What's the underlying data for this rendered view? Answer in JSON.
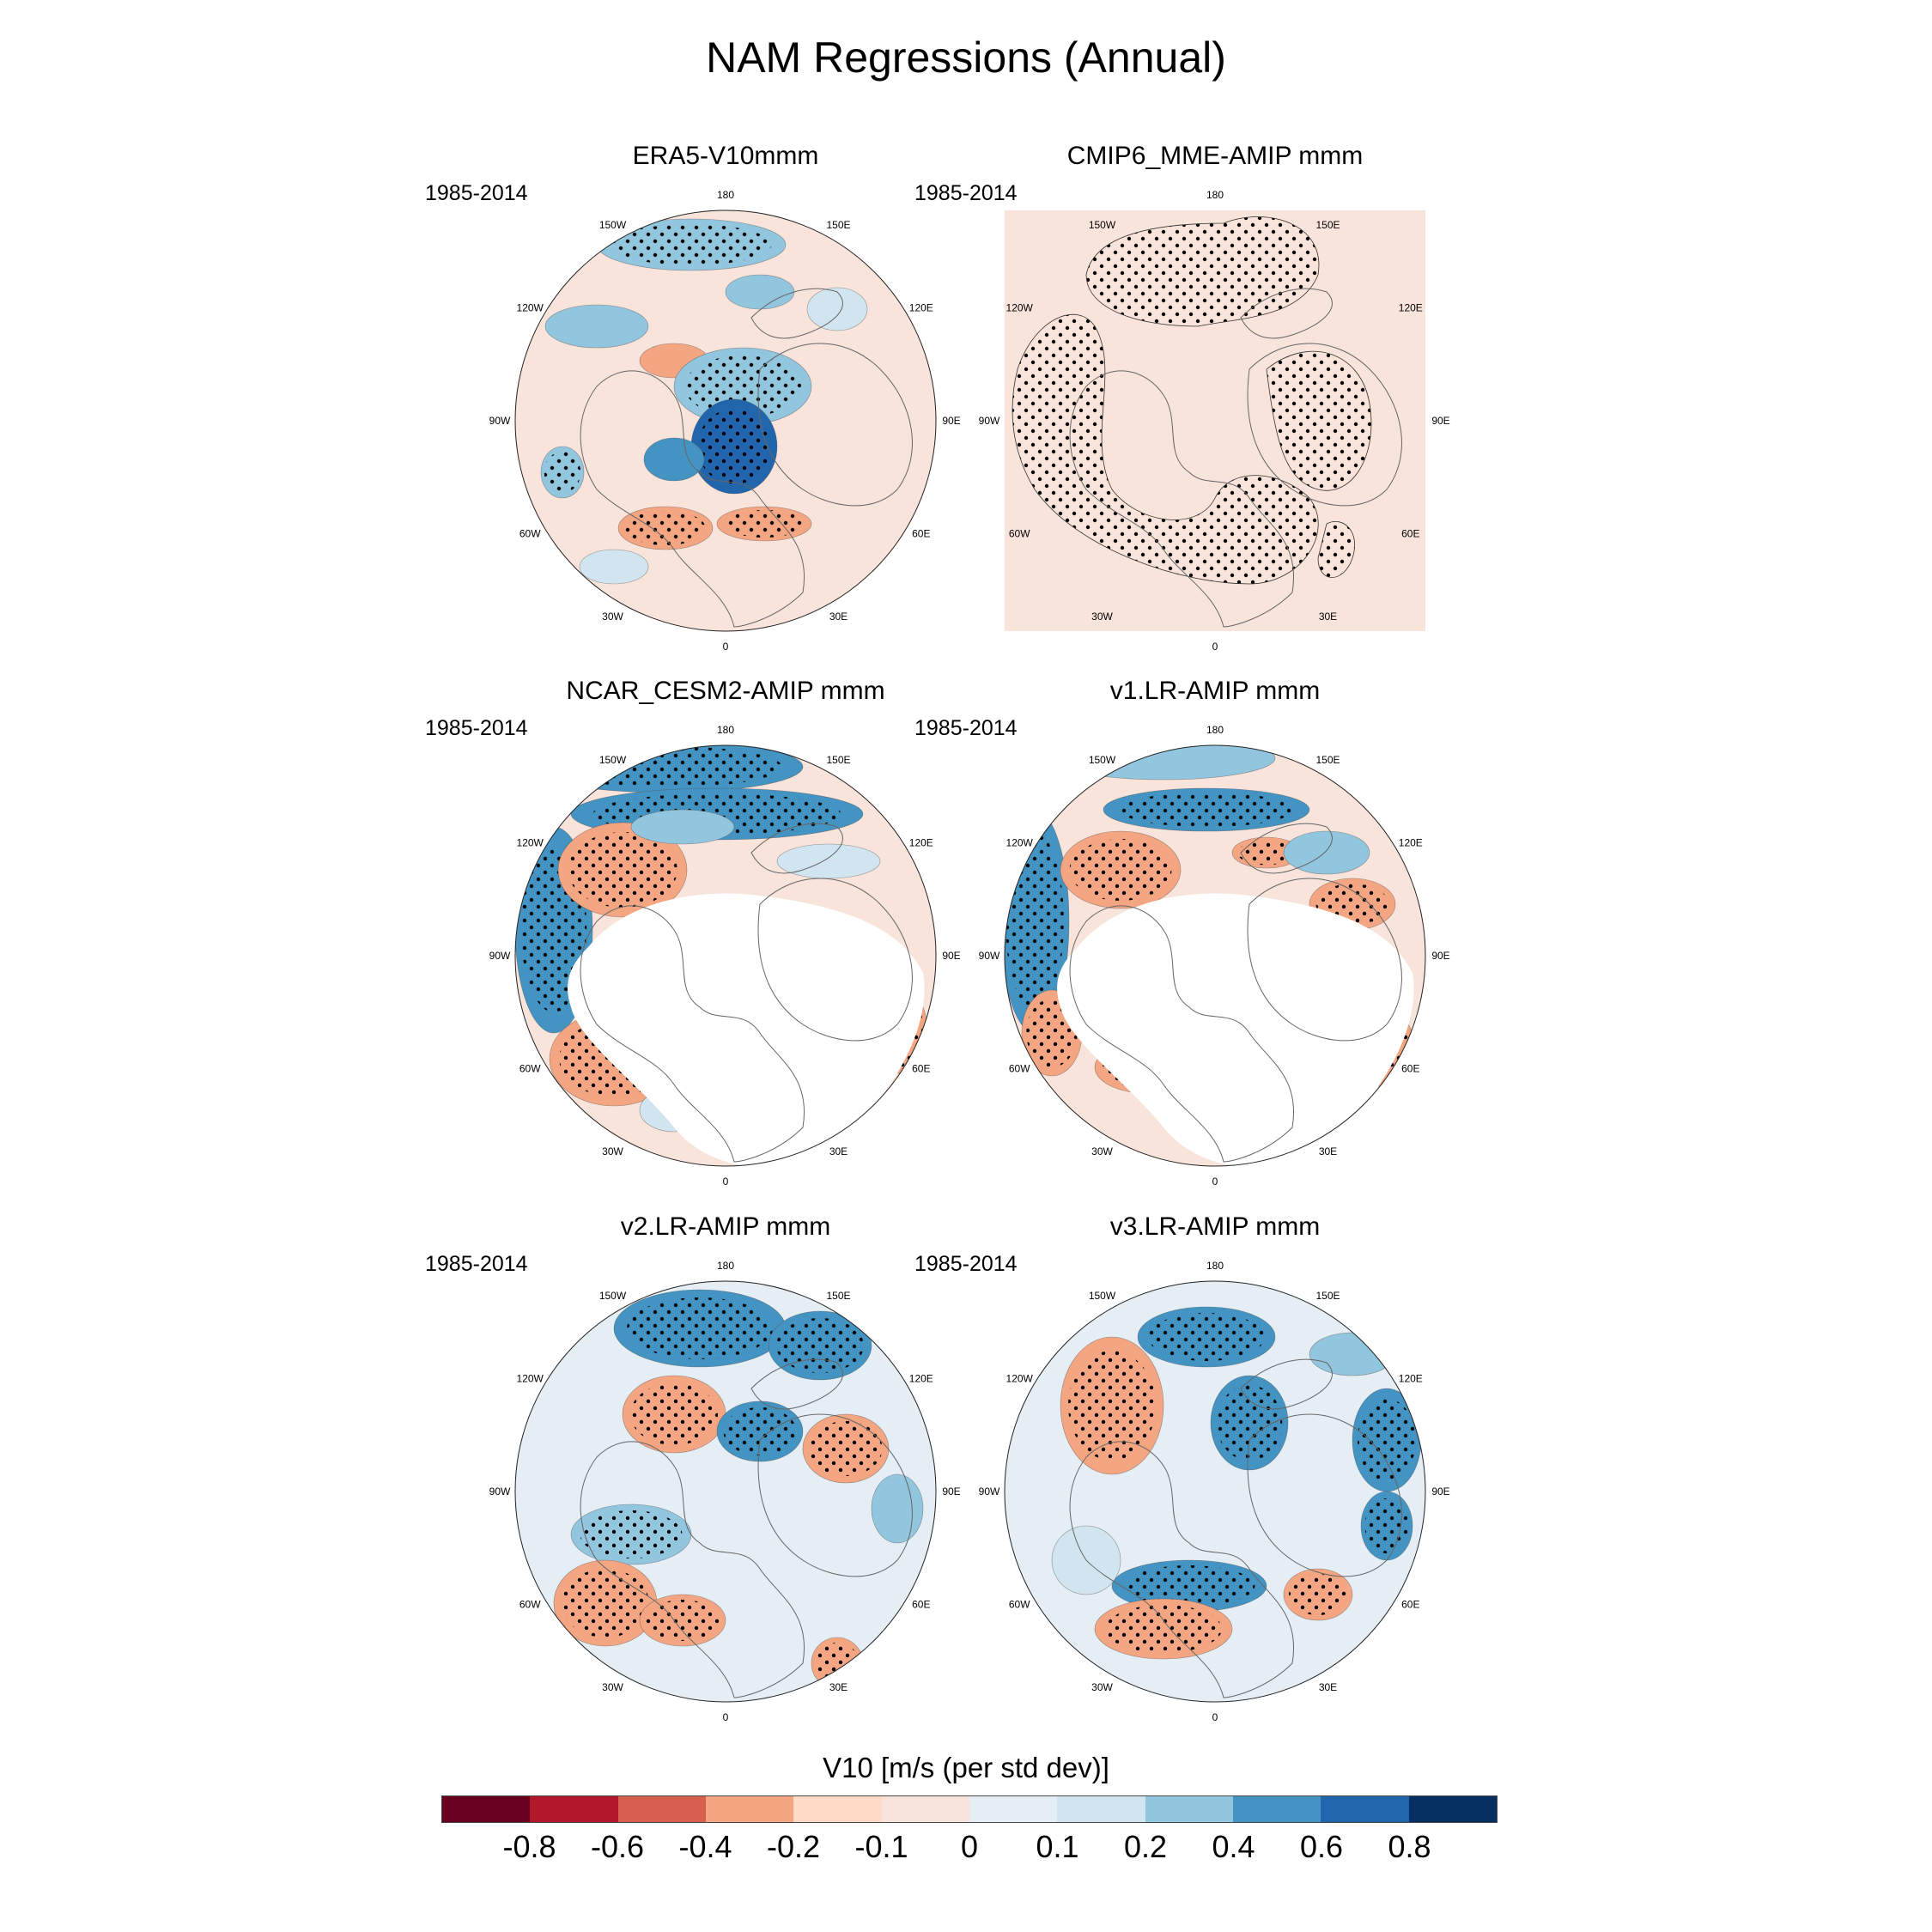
{
  "title": "NAM Regressions (Annual)",
  "panels": [
    {
      "name": "ERA5-V10mmm",
      "period": "1985-2014",
      "style": "era5"
    },
    {
      "name": "CMIP6_MME-AMIP  mmm",
      "period": "1985-2014",
      "style": "mme"
    },
    {
      "name": "NCAR_CESM2-AMIP  mmm",
      "period": "1985-2014",
      "style": "cesm"
    },
    {
      "name": "v1.LR-AMIP  mmm",
      "period": "1985-2014",
      "style": "v1"
    },
    {
      "name": "v2.LR-AMIP  mmm",
      "period": "1985-2014",
      "style": "v2"
    },
    {
      "name": "v3.LR-AMIP  mmm",
      "period": "1985-2014",
      "style": "v3"
    }
  ],
  "longitude_labels": {
    "top": "180",
    "bottom": "0",
    "upper_left": "150W",
    "upper_right": "150E",
    "left_upper": "120W",
    "right_upper": "120E",
    "left": "90W",
    "right": "90E",
    "left_lower": "60W",
    "right_lower": "60E",
    "lower_left": "30W",
    "lower_right": "30E"
  },
  "colorbar": {
    "title": "V10 [m/s (per std dev)]",
    "ticks": [
      "-0.8",
      "-0.6",
      "-0.4",
      "-0.2",
      "-0.1",
      "0",
      "0.1",
      "0.2",
      "0.4",
      "0.6",
      "0.8"
    ],
    "colors": [
      "#67001f",
      "#b2182b",
      "#d6604d",
      "#f4a582",
      "#fddbc7",
      "#f9e4dc",
      "#e5eef4",
      "#d1e5f0",
      "#92c5de",
      "#4393c3",
      "#2166ac",
      "#053061"
    ]
  }
}
